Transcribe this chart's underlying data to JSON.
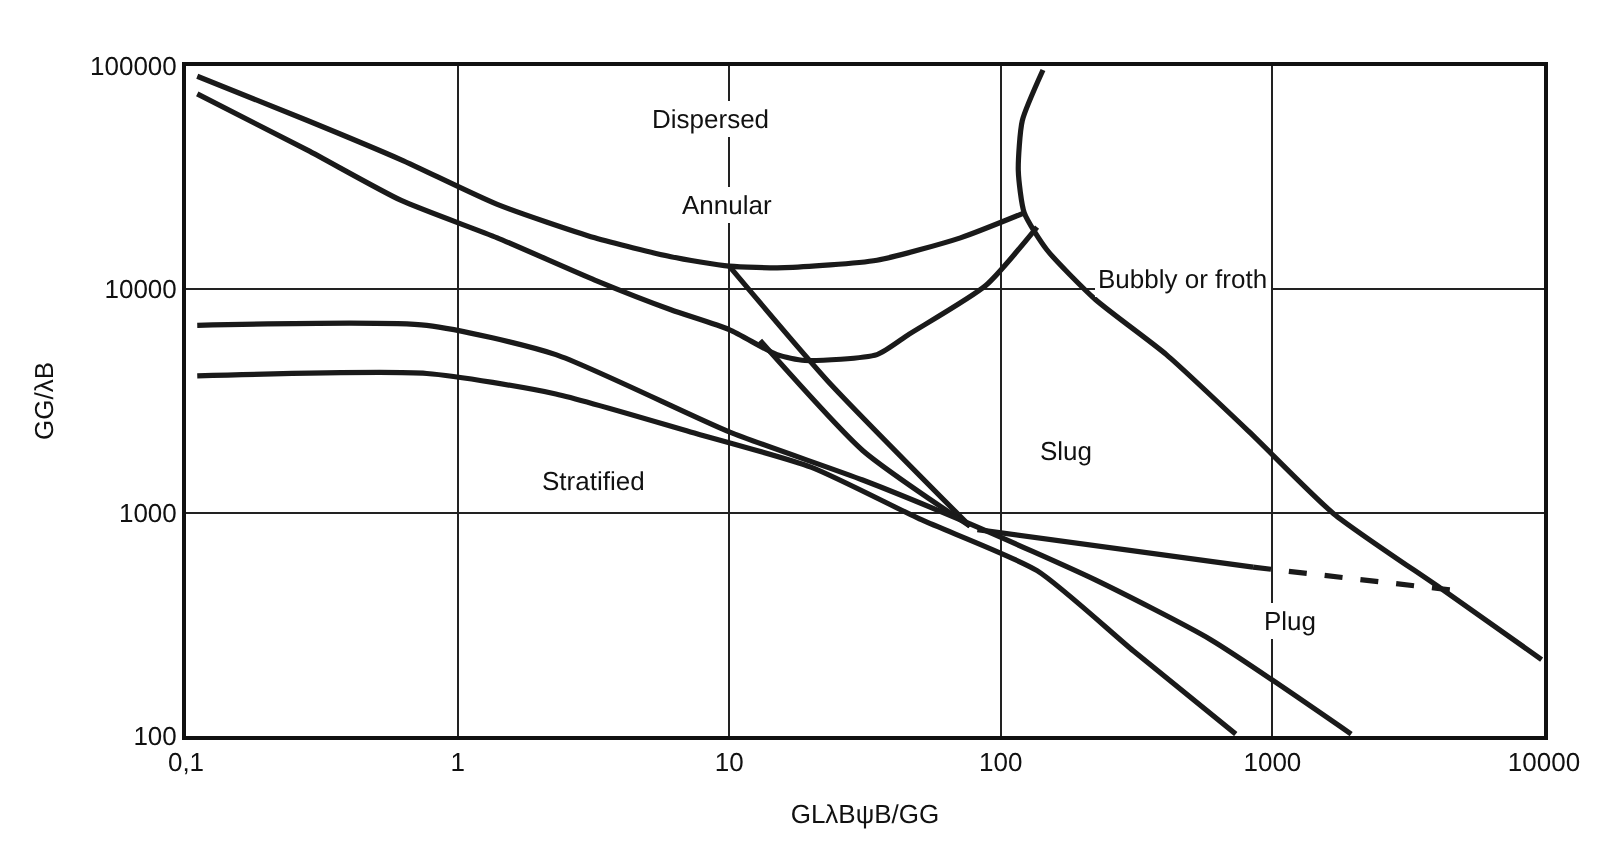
{
  "chart_data": {
    "type": "line",
    "xlabel": "GLλBψB/GG",
    "ylabel": "GG/λB",
    "log": "xy",
    "grid": true,
    "marker": "none",
    "line_style": "solid",
    "xlim": [
      0.1,
      10000
    ],
    "xticks": [
      {
        "value": 0.1,
        "label": "0,1"
      },
      1,
      10,
      100,
      1000,
      10000
    ],
    "ylim": [
      100,
      100000
    ],
    "yticks": [
      100,
      1000,
      10000,
      100000
    ],
    "series": [
      {
        "color": "#1a1a1a",
        "x": [
          0.11,
          0.28,
          0.62,
          1.4,
          3.2,
          6.1,
          10,
          16,
          35,
          71,
          122
        ],
        "values": [
          90000,
          57000,
          38000,
          24000,
          17000,
          14000,
          12700,
          12500,
          13500,
          17000,
          22000
        ]
      },
      {
        "color": "#1a1a1a",
        "x": [
          0.11,
          0.28,
          0.62,
          1.4,
          3.2,
          6.1,
          10,
          15,
          19,
          35,
          46,
          88,
          136
        ],
        "values": [
          75000,
          42000,
          25000,
          17000,
          11000,
          8100,
          6600,
          5100,
          4800,
          5100,
          6300,
          10400,
          19000
        ]
      },
      {
        "color": "#1a1a1a",
        "x": [
          10,
          23,
          77
        ],
        "values": [
          12700,
          3900,
          870
        ]
      },
      {
        "color": "#1a1a1a",
        "x": [
          13,
          31,
          77
        ],
        "values": [
          5900,
          1900,
          870
        ]
      },
      {
        "color": "#1a1a1a",
        "x": [
          0.11,
          0.77,
          2.3,
          10,
          31,
          77,
          223,
          593,
          1950
        ],
        "values": [
          6900,
          6900,
          5100,
          2300,
          1400,
          890,
          500,
          270,
          102
        ]
      },
      {
        "color": "#1a1a1a",
        "x": [
          0.11,
          0.77,
          2.3,
          7.2,
          20,
          51,
          136,
          308,
          733
        ],
        "values": [
          4100,
          4200,
          3400,
          2300,
          1600,
          930,
          550,
          240,
          102
        ]
      },
      {
        "color": "#1a1a1a",
        "x": [
          143,
          120,
          116,
          122,
          148,
          223,
          407,
          822,
          1680,
          4260,
          9800
        ],
        "values": [
          96000,
          57000,
          34000,
          22000,
          15000,
          9000,
          5100,
          2300,
          990,
          450,
          220
        ]
      },
      {
        "color": "#1a1a1a",
        "x": [
          82,
          849
        ],
        "values": [
          840,
          570
        ]
      },
      {
        "color": "#1a1a1a",
        "line_style": "dashed",
        "x": [
          849,
          4590
        ],
        "values": [
          570,
          450
        ]
      }
    ],
    "annotations": [
      "Dispersed",
      "Annular",
      "Bubbly or froth",
      {
        "text": "Slug",
        "x": 174,
        "y": 1900
      },
      "Stratified",
      {
        "text": "Plug",
        "x": 1160,
        "y": 330
      }
    ]
  }
}
